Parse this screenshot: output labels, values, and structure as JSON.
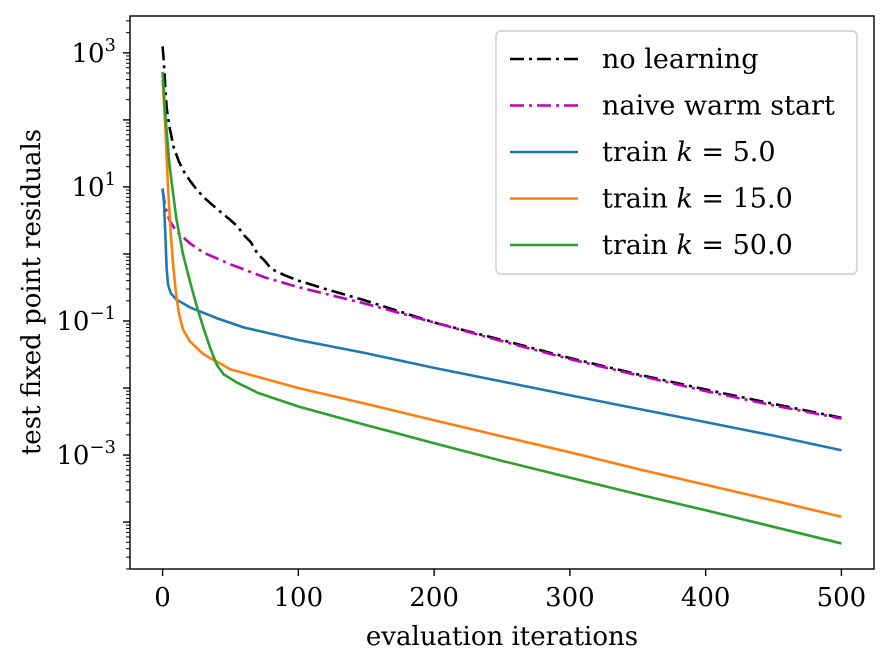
{
  "chart_data": {
    "type": "line",
    "title": "",
    "xlabel": "evaluation iterations",
    "ylabel": "test fixed point residuals",
    "xlim": [
      -24,
      524
    ],
    "ylim_log10": [
      -4.7,
      3.55
    ],
    "yscale": "log",
    "grid": false,
    "legend_position": "top-right",
    "x_ticks": [
      {
        "value": 0,
        "label": "0"
      },
      {
        "value": 100,
        "label": "100"
      },
      {
        "value": 200,
        "label": "200"
      },
      {
        "value": 300,
        "label": "300"
      },
      {
        "value": 400,
        "label": "400"
      },
      {
        "value": 500,
        "label": "500"
      }
    ],
    "y_ticks": [
      {
        "exp": 3,
        "base": "10",
        "sup": "3"
      },
      {
        "exp": 1,
        "base": "10",
        "sup": "1"
      },
      {
        "exp": -1,
        "base": "10",
        "sup": "−1"
      },
      {
        "exp": -3,
        "base": "10",
        "sup": "−3"
      }
    ],
    "series": [
      {
        "name": "no learning",
        "legend": {
          "pre": "no learning",
          "var": "",
          "post": ""
        },
        "color": "#000000",
        "dash": "14,5,3,5",
        "points": [
          [
            0,
            1250
          ],
          [
            1,
            700
          ],
          [
            2,
            300
          ],
          [
            3,
            150
          ],
          [
            5,
            80
          ],
          [
            8,
            40
          ],
          [
            12,
            24
          ],
          [
            16,
            16.5
          ],
          [
            20,
            12.5
          ],
          [
            25,
            9.2
          ],
          [
            30,
            7.1
          ],
          [
            40,
            4.7
          ],
          [
            50,
            3.2
          ],
          [
            55,
            2.6
          ],
          [
            60,
            1.9
          ],
          [
            65,
            1.5
          ],
          [
            70,
            1.0
          ],
          [
            75,
            0.8
          ],
          [
            80,
            0.6
          ],
          [
            90,
            0.48
          ],
          [
            100,
            0.4
          ],
          [
            120,
            0.3
          ],
          [
            150,
            0.2
          ],
          [
            200,
            0.095
          ],
          [
            250,
            0.052
          ],
          [
            300,
            0.028
          ],
          [
            350,
            0.016
          ],
          [
            400,
            0.0095
          ],
          [
            450,
            0.0058
          ],
          [
            500,
            0.0036
          ]
        ]
      },
      {
        "name": "naive warm start",
        "legend": {
          "pre": "naive warm start",
          "var": "",
          "post": ""
        },
        "color": "#bf00bf",
        "dash": "14,5,3,5",
        "points": [
          [
            0,
            9
          ],
          [
            2,
            5
          ],
          [
            5,
            3.2
          ],
          [
            10,
            2.2
          ],
          [
            20,
            1.45
          ],
          [
            30,
            1.05
          ],
          [
            50,
            0.7
          ],
          [
            75,
            0.45
          ],
          [
            100,
            0.32
          ],
          [
            150,
            0.18
          ],
          [
            200,
            0.095
          ],
          [
            250,
            0.05
          ],
          [
            300,
            0.027
          ],
          [
            350,
            0.0155
          ],
          [
            400,
            0.009
          ],
          [
            450,
            0.0055
          ],
          [
            500,
            0.0035
          ]
        ]
      },
      {
        "name": "train k = 5.0",
        "legend": {
          "pre": "train ",
          "var": "k",
          "post": " = 5.0"
        },
        "color": "#1f77b4",
        "dash": "",
        "points": [
          [
            0,
            9.5
          ],
          [
            1,
            6
          ],
          [
            2,
            2
          ],
          [
            3,
            0.6
          ],
          [
            4,
            0.35
          ],
          [
            6,
            0.26
          ],
          [
            10,
            0.21
          ],
          [
            20,
            0.16
          ],
          [
            40,
            0.11
          ],
          [
            60,
            0.08
          ],
          [
            100,
            0.052
          ],
          [
            150,
            0.033
          ],
          [
            200,
            0.02
          ],
          [
            250,
            0.0125
          ],
          [
            300,
            0.0078
          ],
          [
            350,
            0.0049
          ],
          [
            400,
            0.0031
          ],
          [
            450,
            0.00195
          ],
          [
            500,
            0.00118
          ]
        ]
      },
      {
        "name": "train k = 15.0",
        "legend": {
          "pre": "train ",
          "var": "k",
          "post": " = 15.0"
        },
        "color": "#ff7f0e",
        "dash": "",
        "points": [
          [
            0,
            400
          ],
          [
            2,
            80
          ],
          [
            4,
            10
          ],
          [
            6,
            2
          ],
          [
            8,
            0.6
          ],
          [
            10,
            0.25
          ],
          [
            12,
            0.13
          ],
          [
            15,
            0.075
          ],
          [
            20,
            0.05
          ],
          [
            30,
            0.032
          ],
          [
            50,
            0.019
          ],
          [
            100,
            0.01
          ],
          [
            150,
            0.0058
          ],
          [
            200,
            0.0033
          ],
          [
            250,
            0.0019
          ],
          [
            300,
            0.0011
          ],
          [
            350,
            0.00062
          ],
          [
            400,
            0.00036
          ],
          [
            450,
            0.00021
          ],
          [
            500,
            0.00012
          ]
        ]
      },
      {
        "name": "train k = 50.0",
        "legend": {
          "pre": "train ",
          "var": "k",
          "post": " = 50.0"
        },
        "color": "#2ca02c",
        "dash": "",
        "points": [
          [
            0,
            520
          ],
          [
            2,
            120
          ],
          [
            5,
            22
          ],
          [
            10,
            3.5
          ],
          [
            15,
            1.0
          ],
          [
            20,
            0.4
          ],
          [
            25,
            0.17
          ],
          [
            30,
            0.08
          ],
          [
            35,
            0.04
          ],
          [
            40,
            0.022
          ],
          [
            45,
            0.016
          ],
          [
            55,
            0.012
          ],
          [
            70,
            0.0085
          ],
          [
            100,
            0.0053
          ],
          [
            150,
            0.0028
          ],
          [
            200,
            0.0015
          ],
          [
            250,
            0.00082
          ],
          [
            300,
            0.00046
          ],
          [
            350,
            0.00026
          ],
          [
            400,
            0.00015
          ],
          [
            450,
            8.5e-05
          ],
          [
            500,
            4.8e-05
          ]
        ]
      }
    ]
  }
}
